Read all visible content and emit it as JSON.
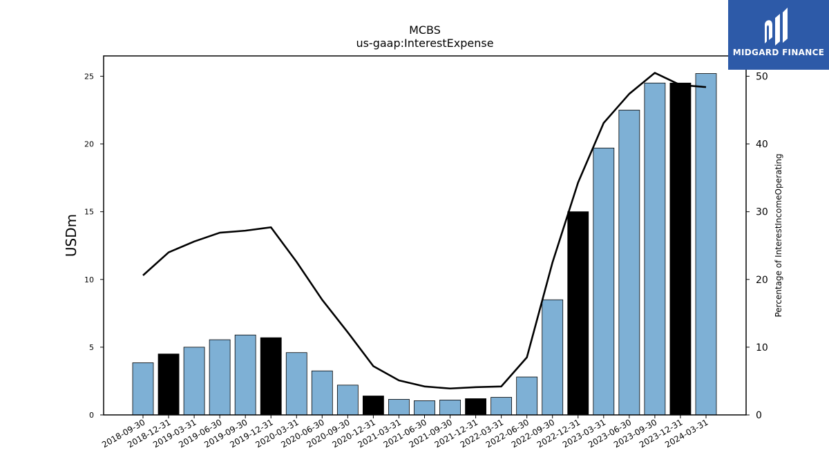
{
  "brand": {
    "name": "MIDGARD FINANCE",
    "color": "#2d5aa8"
  },
  "chart_data": {
    "type": "bar",
    "title": "MCBS",
    "subtitle": "us-gaap:InterestExpense",
    "ylabel": "USDm",
    "y2label": "Percentage of InterestIncomeOperating",
    "ylim": [
      0,
      26.5
    ],
    "y2lim": [
      0,
      53
    ],
    "yticks": [
      0,
      5,
      10,
      15,
      20,
      25
    ],
    "y2ticks": [
      0,
      10,
      20,
      30,
      40,
      50
    ],
    "categories": [
      "2018-09-30",
      "2018-12-31",
      "2019-03-31",
      "2019-06-30",
      "2019-09-30",
      "2019-12-31",
      "2020-03-31",
      "2020-06-30",
      "2020-09-30",
      "2020-12-31",
      "2021-03-31",
      "2021-06-30",
      "2021-09-30",
      "2021-12-31",
      "2022-03-31",
      "2022-06-30",
      "2022-09-30",
      "2022-12-31",
      "2023-03-31",
      "2023-06-30",
      "2023-09-30",
      "2023-12-31",
      "2024-03-31"
    ],
    "series": [
      {
        "type": "bar",
        "axis": "left",
        "values": [
          3.85,
          4.5,
          5.0,
          5.55,
          5.9,
          5.7,
          4.6,
          3.25,
          2.2,
          1.4,
          1.15,
          1.05,
          1.1,
          1.2,
          1.3,
          2.8,
          8.5,
          15.0,
          19.7,
          22.5,
          24.5,
          24.5,
          25.2
        ],
        "highlight": [
          false,
          true,
          false,
          false,
          false,
          true,
          false,
          false,
          false,
          true,
          false,
          false,
          false,
          true,
          false,
          false,
          false,
          true,
          false,
          false,
          false,
          true,
          false
        ]
      },
      {
        "type": "line",
        "axis": "right",
        "values": [
          20.6,
          24.0,
          25.6,
          26.9,
          27.2,
          27.7,
          22.6,
          17.0,
          12.2,
          7.2,
          5.1,
          4.2,
          3.9,
          4.1,
          4.2,
          8.5,
          22.5,
          34.3,
          43.1,
          47.4,
          50.5,
          48.7,
          48.4
        ]
      }
    ],
    "colors": {
      "bar": "#7eb0d5",
      "bar_highlight": "#000000",
      "line": "#000000"
    },
    "grid": false
  }
}
